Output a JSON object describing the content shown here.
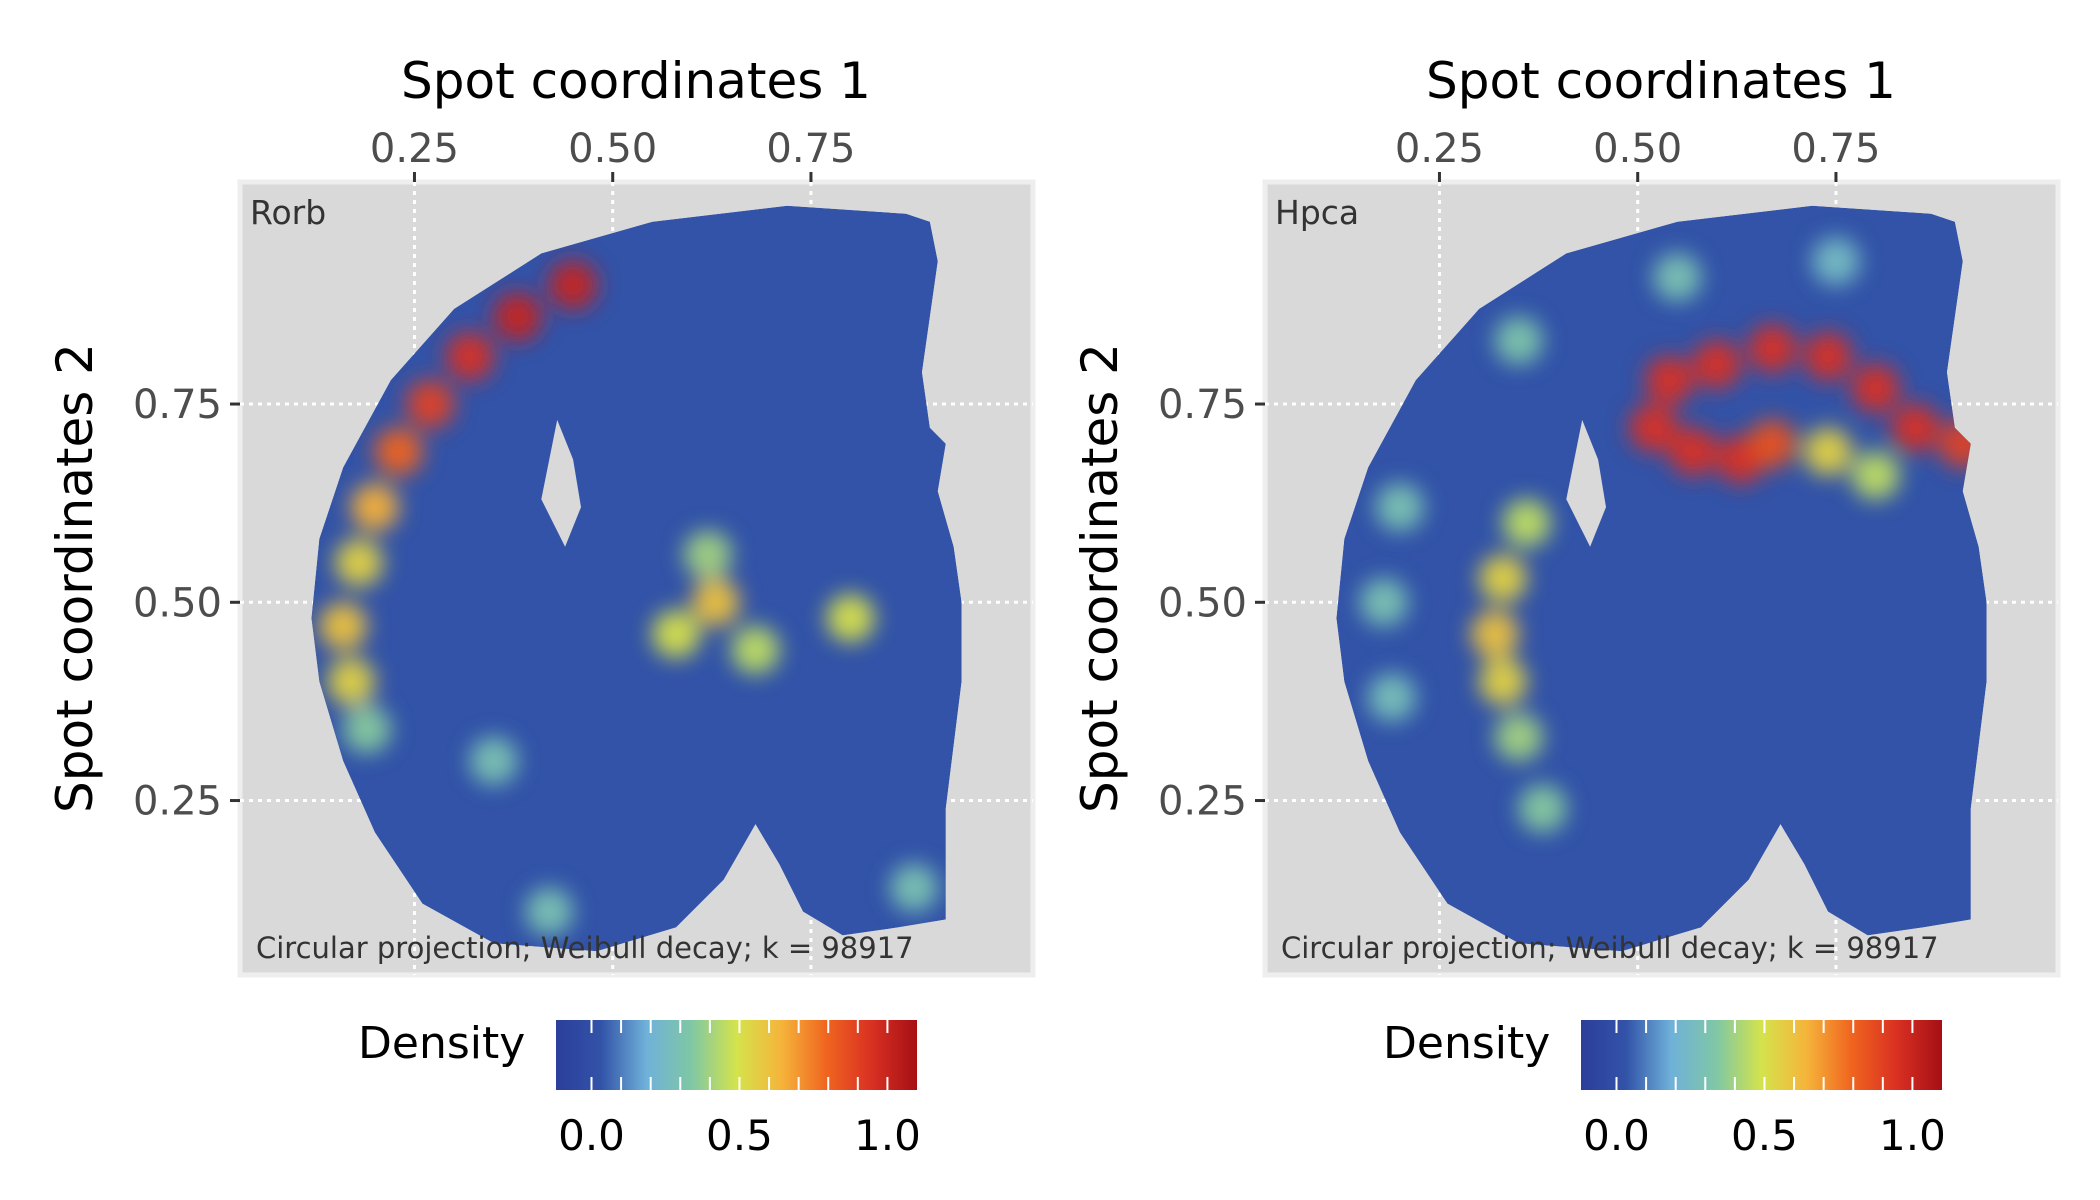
{
  "chart_data": [
    {
      "type": "heatmap",
      "panel_label": "Rorb",
      "caption": "Circular projection; Weibull decay; k = 98917",
      "xlabel": "Spot coordinates 1",
      "ylabel": "Spot coordinates 2",
      "x_axis_position": "top",
      "xlim": [
        0.03,
        1.03
      ],
      "ylim": [
        0.03,
        1.03
      ],
      "x_ticks": [
        0.25,
        0.5,
        0.75
      ],
      "x_tick_labels": [
        "0.25",
        "0.50",
        "0.75"
      ],
      "y_ticks": [
        0.25,
        0.5,
        0.75
      ],
      "y_tick_labels": [
        "0.25",
        "0.50",
        "0.75"
      ],
      "grid": true,
      "background_color": "#d9d9d9",
      "legend": {
        "title": "Density",
        "placement": "bottom",
        "ticks": [
          0.0,
          0.5,
          1.0
        ],
        "tick_labels": [
          "0.0",
          "0.5",
          "1.0"
        ],
        "range": [
          -0.12,
          1.1
        ]
      },
      "colorscale": [
        "#2b3e9b",
        "#3253a8",
        "#6fb1d9",
        "#7fc7a5",
        "#d4e34c",
        "#f5b43a",
        "#f0641f",
        "#d93022",
        "#a50f15"
      ],
      "hotspots": [
        {
          "x": 0.45,
          "y": 0.9,
          "value": 1.0
        },
        {
          "x": 0.38,
          "y": 0.86,
          "value": 1.0
        },
        {
          "x": 0.32,
          "y": 0.81,
          "value": 0.95
        },
        {
          "x": 0.27,
          "y": 0.75,
          "value": 0.9
        },
        {
          "x": 0.23,
          "y": 0.69,
          "value": 0.8
        },
        {
          "x": 0.2,
          "y": 0.62,
          "value": 0.65
        },
        {
          "x": 0.18,
          "y": 0.55,
          "value": 0.55
        },
        {
          "x": 0.16,
          "y": 0.47,
          "value": 0.6
        },
        {
          "x": 0.17,
          "y": 0.4,
          "value": 0.55
        },
        {
          "x": 0.19,
          "y": 0.34,
          "value": 0.35
        },
        {
          "x": 0.63,
          "y": 0.5,
          "value": 0.6
        },
        {
          "x": 0.58,
          "y": 0.46,
          "value": 0.5
        },
        {
          "x": 0.68,
          "y": 0.44,
          "value": 0.45
        },
        {
          "x": 0.62,
          "y": 0.56,
          "value": 0.4
        },
        {
          "x": 0.8,
          "y": 0.48,
          "value": 0.5
        },
        {
          "x": 0.35,
          "y": 0.3,
          "value": 0.3
        },
        {
          "x": 0.42,
          "y": 0.11,
          "value": 0.3
        },
        {
          "x": 0.88,
          "y": 0.14,
          "value": 0.3
        }
      ]
    },
    {
      "type": "heatmap",
      "panel_label": "Hpca",
      "caption": "Circular projection; Weibull decay; k = 98917",
      "xlabel": "Spot coordinates 1",
      "ylabel": "Spot coordinates 2",
      "x_axis_position": "top",
      "xlim": [
        0.03,
        1.03
      ],
      "ylim": [
        0.03,
        1.03
      ],
      "x_ticks": [
        0.25,
        0.5,
        0.75
      ],
      "x_tick_labels": [
        "0.25",
        "0.50",
        "0.75"
      ],
      "y_ticks": [
        0.25,
        0.5,
        0.75
      ],
      "y_tick_labels": [
        "0.25",
        "0.50",
        "0.75"
      ],
      "grid": true,
      "background_color": "#d9d9d9",
      "legend": {
        "title": "Density",
        "placement": "bottom",
        "ticks": [
          0.0,
          0.5,
          1.0
        ],
        "tick_labels": [
          "0.0",
          "0.5",
          "1.0"
        ],
        "range": [
          -0.12,
          1.1
        ]
      },
      "colorscale": [
        "#2b3e9b",
        "#3253a8",
        "#6fb1d9",
        "#7fc7a5",
        "#d4e34c",
        "#f5b43a",
        "#f0641f",
        "#d93022",
        "#a50f15"
      ],
      "hotspots": [
        {
          "x": 0.54,
          "y": 0.78,
          "value": 0.95
        },
        {
          "x": 0.6,
          "y": 0.8,
          "value": 0.95
        },
        {
          "x": 0.67,
          "y": 0.82,
          "value": 0.95
        },
        {
          "x": 0.74,
          "y": 0.81,
          "value": 0.95
        },
        {
          "x": 0.8,
          "y": 0.77,
          "value": 0.95
        },
        {
          "x": 0.85,
          "y": 0.72,
          "value": 0.95
        },
        {
          "x": 0.91,
          "y": 0.7,
          "value": 0.9
        },
        {
          "x": 0.52,
          "y": 0.72,
          "value": 0.95
        },
        {
          "x": 0.57,
          "y": 0.69,
          "value": 0.95
        },
        {
          "x": 0.63,
          "y": 0.68,
          "value": 0.95
        },
        {
          "x": 0.67,
          "y": 0.7,
          "value": 0.85
        },
        {
          "x": 0.74,
          "y": 0.69,
          "value": 0.55
        },
        {
          "x": 0.8,
          "y": 0.66,
          "value": 0.45
        },
        {
          "x": 0.36,
          "y": 0.6,
          "value": 0.45
        },
        {
          "x": 0.33,
          "y": 0.53,
          "value": 0.55
        },
        {
          "x": 0.32,
          "y": 0.46,
          "value": 0.6
        },
        {
          "x": 0.33,
          "y": 0.4,
          "value": 0.55
        },
        {
          "x": 0.35,
          "y": 0.33,
          "value": 0.4
        },
        {
          "x": 0.38,
          "y": 0.24,
          "value": 0.35
        },
        {
          "x": 0.2,
          "y": 0.62,
          "value": 0.3
        },
        {
          "x": 0.18,
          "y": 0.5,
          "value": 0.3
        },
        {
          "x": 0.19,
          "y": 0.38,
          "value": 0.28
        },
        {
          "x": 0.35,
          "y": 0.83,
          "value": 0.32
        },
        {
          "x": 0.55,
          "y": 0.91,
          "value": 0.3
        },
        {
          "x": 0.75,
          "y": 0.93,
          "value": 0.25
        }
      ]
    }
  ]
}
